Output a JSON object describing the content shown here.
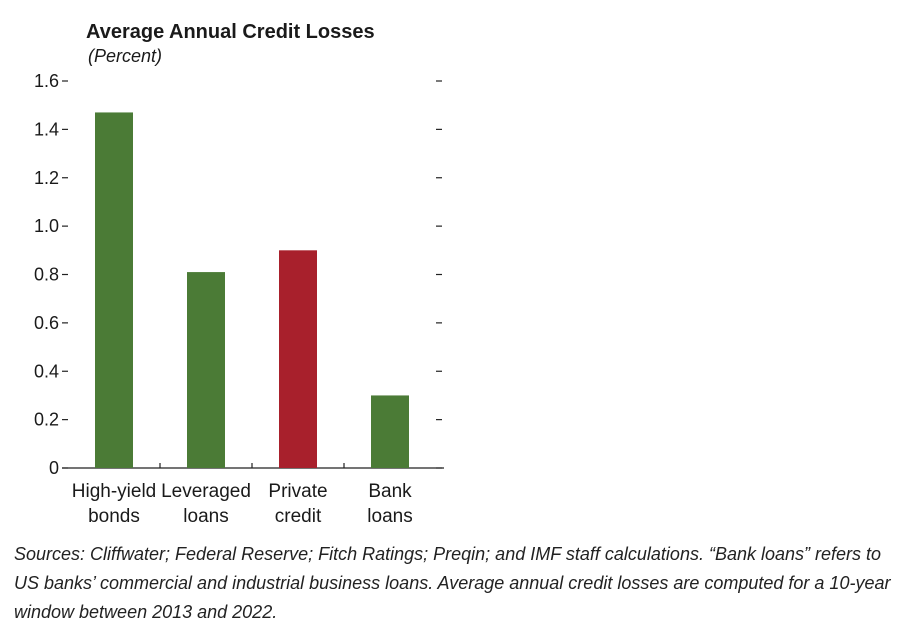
{
  "chart_data": {
    "type": "bar",
    "title": "Average Annual Credit Losses",
    "subtitle": "(Percent)",
    "categories": [
      [
        "High-yield",
        "bonds"
      ],
      [
        "Leveraged",
        "loans"
      ],
      [
        "Private",
        "credit"
      ],
      [
        "Bank",
        "loans"
      ]
    ],
    "values": [
      1.47,
      0.81,
      0.9,
      0.3
    ],
    "bar_colors": [
      "#4b7b36",
      "#4b7b36",
      "#a8202c",
      "#4b7b36"
    ],
    "ylim": [
      0,
      1.6
    ],
    "yticks": [
      0,
      0.2,
      0.4,
      0.6,
      0.8,
      1.0,
      1.2,
      1.4,
      1.6
    ],
    "ytick_labels": [
      "0",
      "0.2",
      "0.4",
      "0.6",
      "0.8",
      "1.0",
      "1.2",
      "1.4",
      "1.6"
    ],
    "xlabel": "",
    "ylabel": "",
    "grid": false,
    "right_axis_ticks": true
  },
  "source_note": "Sources: Cliffwater; Federal Reserve; Fitch Ratings; Preqin; and IMF staff calculations. “Bank loans” refers to US banks’ commercial and industrial business loans. Average annual credit losses are computed for a 10-year window between 2013 and 2022."
}
